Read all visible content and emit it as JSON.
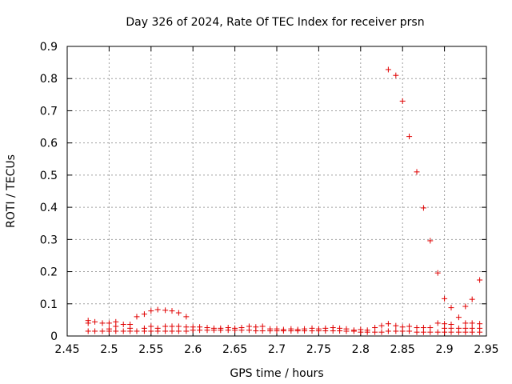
{
  "chart_data": {
    "type": "scatter",
    "title": "Day 326 of 2024, Rate Of TEC Index for receiver prsn",
    "xlabel": "GPS time / hours",
    "ylabel": "ROTI / TECUs",
    "xlim": [
      2.45,
      2.95
    ],
    "ylim": [
      0,
      0.9
    ],
    "grid": true,
    "xticks": [
      "2.45",
      "2.5",
      "2.55",
      "2.6",
      "2.65",
      "2.7",
      "2.75",
      "2.8",
      "2.85",
      "2.9",
      "2.95"
    ],
    "yticks": [
      "0",
      "0.1",
      "0.2",
      "0.3",
      "0.4",
      "0.5",
      "0.6",
      "0.7",
      "0.8",
      "0.9"
    ],
    "marker": "+",
    "color": "#e00000",
    "series": [
      {
        "points": [
          [
            2.475,
            0.015
          ],
          [
            2.475,
            0.04
          ],
          [
            2.475,
            0.048
          ],
          [
            2.483,
            0.015
          ],
          [
            2.483,
            0.044
          ],
          [
            2.492,
            0.015
          ],
          [
            2.492,
            0.04
          ],
          [
            2.5,
            0.015
          ],
          [
            2.5,
            0.022
          ],
          [
            2.5,
            0.04
          ],
          [
            2.508,
            0.015
          ],
          [
            2.508,
            0.03
          ],
          [
            2.508,
            0.044
          ],
          [
            2.517,
            0.015
          ],
          [
            2.517,
            0.036
          ],
          [
            2.525,
            0.015
          ],
          [
            2.525,
            0.024
          ],
          [
            2.525,
            0.036
          ],
          [
            2.533,
            0.015
          ],
          [
            2.533,
            0.06
          ],
          [
            2.542,
            0.015
          ],
          [
            2.542,
            0.024
          ],
          [
            2.542,
            0.068
          ],
          [
            2.55,
            0.015
          ],
          [
            2.55,
            0.03
          ],
          [
            2.55,
            0.078
          ],
          [
            2.558,
            0.015
          ],
          [
            2.558,
            0.024
          ],
          [
            2.558,
            0.082
          ],
          [
            2.567,
            0.015
          ],
          [
            2.567,
            0.03
          ],
          [
            2.567,
            0.08
          ],
          [
            2.575,
            0.015
          ],
          [
            2.575,
            0.03
          ],
          [
            2.575,
            0.078
          ],
          [
            2.583,
            0.015
          ],
          [
            2.583,
            0.03
          ],
          [
            2.583,
            0.072
          ],
          [
            2.592,
            0.015
          ],
          [
            2.592,
            0.028
          ],
          [
            2.592,
            0.06
          ],
          [
            2.6,
            0.018
          ],
          [
            2.6,
            0.028
          ],
          [
            2.608,
            0.018
          ],
          [
            2.608,
            0.028
          ],
          [
            2.617,
            0.018
          ],
          [
            2.617,
            0.026
          ],
          [
            2.625,
            0.018
          ],
          [
            2.625,
            0.024
          ],
          [
            2.633,
            0.018
          ],
          [
            2.633,
            0.024
          ],
          [
            2.642,
            0.018
          ],
          [
            2.642,
            0.026
          ],
          [
            2.65,
            0.018
          ],
          [
            2.65,
            0.024
          ],
          [
            2.658,
            0.018
          ],
          [
            2.658,
            0.026
          ],
          [
            2.667,
            0.018
          ],
          [
            2.667,
            0.03
          ],
          [
            2.675,
            0.016
          ],
          [
            2.675,
            0.028
          ],
          [
            2.683,
            0.016
          ],
          [
            2.683,
            0.03
          ],
          [
            2.692,
            0.016
          ],
          [
            2.692,
            0.022
          ],
          [
            2.7,
            0.016
          ],
          [
            2.7,
            0.022
          ],
          [
            2.708,
            0.016
          ],
          [
            2.708,
            0.02
          ],
          [
            2.717,
            0.016
          ],
          [
            2.717,
            0.022
          ],
          [
            2.725,
            0.016
          ],
          [
            2.725,
            0.02
          ],
          [
            2.733,
            0.016
          ],
          [
            2.733,
            0.022
          ],
          [
            2.742,
            0.016
          ],
          [
            2.742,
            0.024
          ],
          [
            2.75,
            0.016
          ],
          [
            2.75,
            0.022
          ],
          [
            2.758,
            0.016
          ],
          [
            2.758,
            0.024
          ],
          [
            2.767,
            0.016
          ],
          [
            2.767,
            0.026
          ],
          [
            2.775,
            0.016
          ],
          [
            2.775,
            0.024
          ],
          [
            2.783,
            0.015
          ],
          [
            2.783,
            0.022
          ],
          [
            2.792,
            0.015
          ],
          [
            2.792,
            0.018
          ],
          [
            2.8,
            0.012
          ],
          [
            2.8,
            0.02
          ],
          [
            2.808,
            0.012
          ],
          [
            2.808,
            0.018
          ],
          [
            2.817,
            0.012
          ],
          [
            2.817,
            0.026
          ],
          [
            2.825,
            0.012
          ],
          [
            2.825,
            0.032
          ],
          [
            2.833,
            0.015
          ],
          [
            2.833,
            0.038
          ],
          [
            2.833,
            0.828
          ],
          [
            2.842,
            0.015
          ],
          [
            2.842,
            0.032
          ],
          [
            2.842,
            0.81
          ],
          [
            2.85,
            0.015
          ],
          [
            2.85,
            0.028
          ],
          [
            2.85,
            0.73
          ],
          [
            2.858,
            0.015
          ],
          [
            2.858,
            0.03
          ],
          [
            2.858,
            0.62
          ],
          [
            2.867,
            0.012
          ],
          [
            2.867,
            0.026
          ],
          [
            2.867,
            0.51
          ],
          [
            2.875,
            0.012
          ],
          [
            2.875,
            0.026
          ],
          [
            2.875,
            0.398
          ],
          [
            2.883,
            0.012
          ],
          [
            2.883,
            0.026
          ],
          [
            2.883,
            0.296
          ],
          [
            2.892,
            0.012
          ],
          [
            2.892,
            0.04
          ],
          [
            2.892,
            0.196
          ],
          [
            2.9,
            0.012
          ],
          [
            2.9,
            0.024
          ],
          [
            2.9,
            0.038
          ],
          [
            2.9,
            0.116
          ],
          [
            2.908,
            0.012
          ],
          [
            2.908,
            0.024
          ],
          [
            2.908,
            0.036
          ],
          [
            2.908,
            0.088
          ],
          [
            2.917,
            0.012
          ],
          [
            2.917,
            0.024
          ],
          [
            2.917,
            0.058
          ],
          [
            2.925,
            0.012
          ],
          [
            2.925,
            0.024
          ],
          [
            2.925,
            0.04
          ],
          [
            2.925,
            0.092
          ],
          [
            2.933,
            0.012
          ],
          [
            2.933,
            0.024
          ],
          [
            2.933,
            0.04
          ],
          [
            2.933,
            0.114
          ],
          [
            2.942,
            0.012
          ],
          [
            2.942,
            0.024
          ],
          [
            2.942,
            0.038
          ],
          [
            2.942,
            0.174
          ]
        ]
      }
    ]
  }
}
